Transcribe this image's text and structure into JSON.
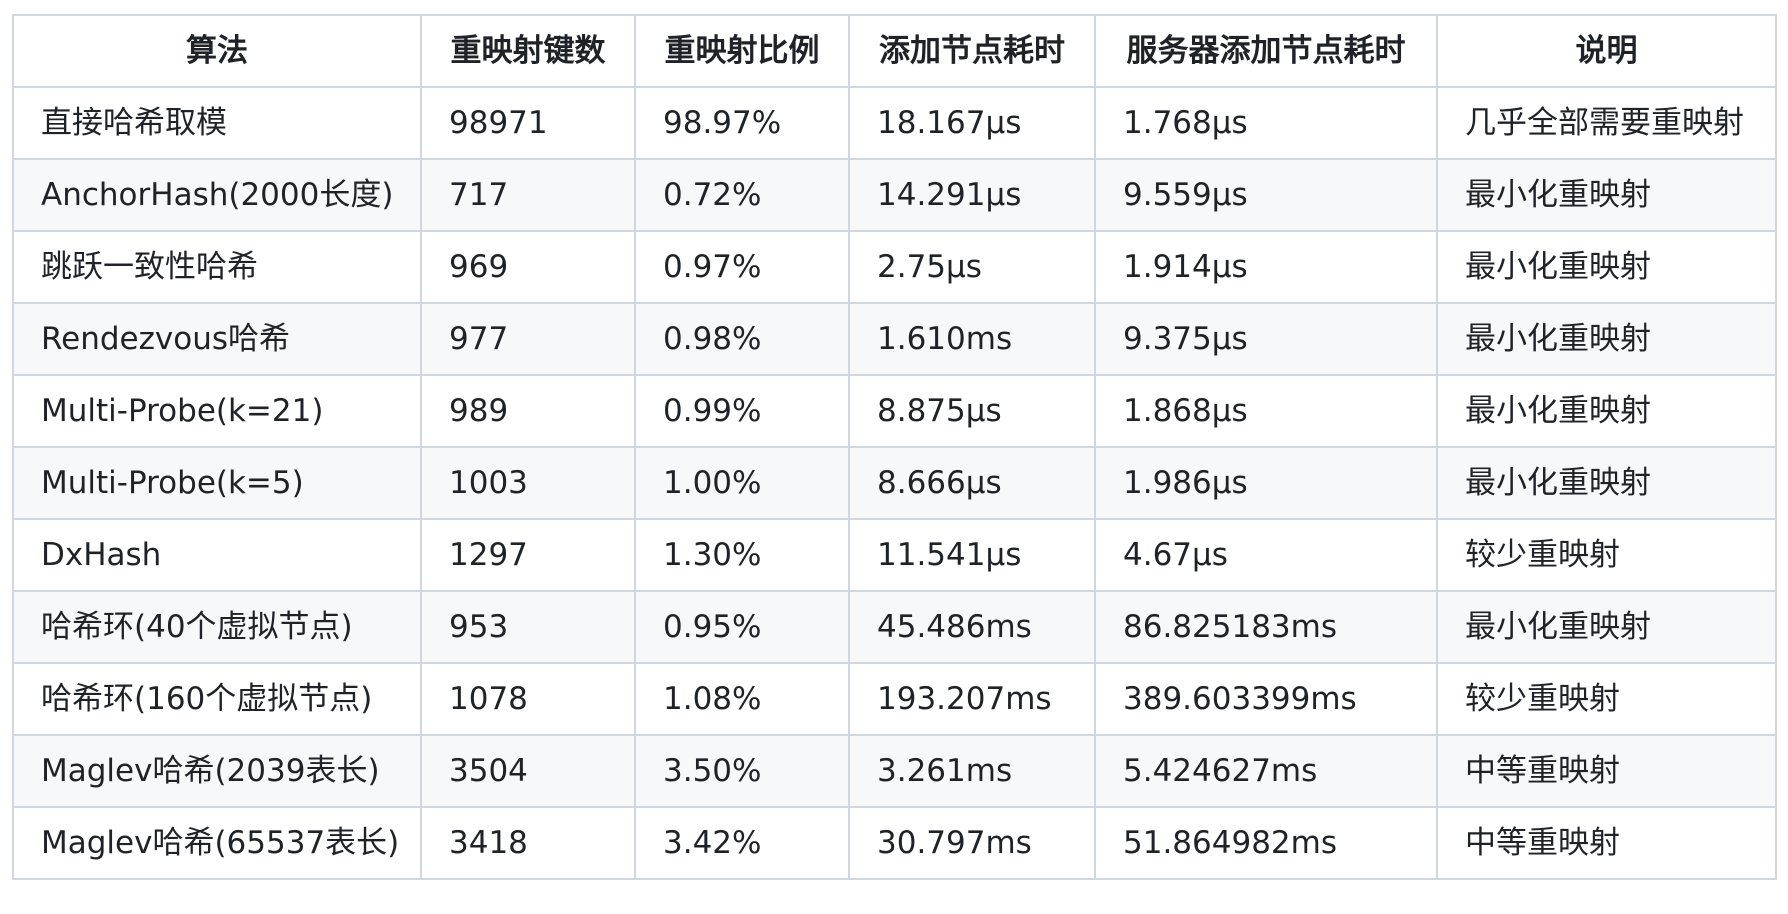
{
  "table": {
    "headers": [
      "算法",
      "重映射键数",
      "重映射比例",
      "添加节点耗时",
      "服务器添加节点耗时",
      "说明"
    ],
    "rows": [
      [
        "直接哈希取模",
        "98971",
        "98.97%",
        "18.167µs",
        "1.768µs",
        "几乎全部需要重映射"
      ],
      [
        "AnchorHash(2000长度)",
        "717",
        "0.72%",
        "14.291µs",
        "9.559µs",
        "最小化重映射"
      ],
      [
        "跳跃一致性哈希",
        "969",
        "0.97%",
        "2.75µs",
        "1.914µs",
        "最小化重映射"
      ],
      [
        "Rendezvous哈希",
        "977",
        "0.98%",
        "1.610ms",
        "9.375µs",
        "最小化重映射"
      ],
      [
        "Multi-Probe(k=21)",
        "989",
        "0.99%",
        "8.875µs",
        "1.868µs",
        "最小化重映射"
      ],
      [
        "Multi-Probe(k=5)",
        "1003",
        "1.00%",
        "8.666µs",
        "1.986µs",
        "最小化重映射"
      ],
      [
        "DxHash",
        "1297",
        "1.30%",
        "11.541µs",
        "4.67µs",
        "较少重映射"
      ],
      [
        "哈希环(40个虚拟节点)",
        "953",
        "0.95%",
        "45.486ms",
        "86.825183ms",
        "最小化重映射"
      ],
      [
        "哈希环(160个虚拟节点)",
        "1078",
        "1.08%",
        "193.207ms",
        "389.603399ms",
        "较少重映射"
      ],
      [
        "Maglev哈希(2039表长)",
        "3504",
        "3.50%",
        "3.261ms",
        "5.424627ms",
        "中等重映射"
      ],
      [
        "Maglev哈希(65537表长)",
        "3418",
        "3.42%",
        "30.797ms",
        "51.864982ms",
        "中等重映射"
      ]
    ]
  }
}
